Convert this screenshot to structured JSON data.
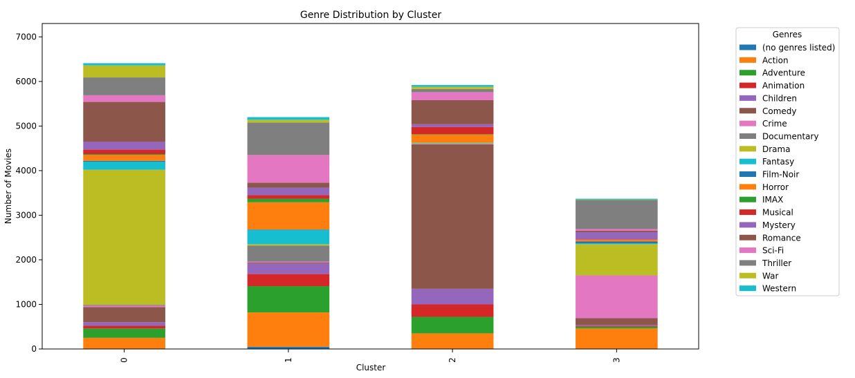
{
  "chart_data": {
    "type": "bar",
    "stacked": true,
    "title": "Genre Distribution by Cluster",
    "xlabel": "Cluster",
    "ylabel": "Number of Movies",
    "categories": [
      "0",
      "1",
      "2",
      "3"
    ],
    "ylim": [
      0,
      7300
    ],
    "yticks": [
      0,
      1000,
      2000,
      3000,
      4000,
      5000,
      6000,
      7000
    ],
    "legend_title": "Genres",
    "legend_position": "right, outside plot",
    "series": [
      {
        "name": "(no genres listed)",
        "color": "#1f77b4",
        "values": [
          0,
          50,
          0,
          0
        ]
      },
      {
        "name": "Action",
        "color": "#ff7f0e",
        "values": [
          250,
          770,
          350,
          460
        ]
      },
      {
        "name": "Adventure",
        "color": "#2ca02c",
        "values": [
          210,
          590,
          370,
          40
        ]
      },
      {
        "name": "Animation",
        "color": "#d62728",
        "values": [
          60,
          270,
          280,
          20
        ]
      },
      {
        "name": "Children",
        "color": "#9467bd",
        "values": [
          80,
          240,
          350,
          20
        ]
      },
      {
        "name": "Comedy",
        "color": "#8c564b",
        "values": [
          340,
          20,
          3240,
          150
        ]
      },
      {
        "name": "Crime",
        "color": "#e377c2",
        "values": [
          30,
          20,
          10,
          960
        ]
      },
      {
        "name": "Documentary",
        "color": "#7f7f7f",
        "values": [
          20,
          360,
          10,
          0
        ]
      },
      {
        "name": "Drama",
        "color": "#bcbd22",
        "values": [
          3030,
          30,
          10,
          700
        ]
      },
      {
        "name": "Fantasy",
        "color": "#17becf",
        "values": [
          180,
          320,
          10,
          20
        ]
      },
      {
        "name": "Film-Noir",
        "color": "#1f77b4",
        "values": [
          20,
          10,
          0,
          40
        ]
      },
      {
        "name": "Horror",
        "color": "#ff7f0e",
        "values": [
          130,
          610,
          180,
          40
        ]
      },
      {
        "name": "IMAX",
        "color": "#2ca02c",
        "values": [
          20,
          80,
          10,
          0
        ]
      },
      {
        "name": "Musical",
        "color": "#d62728",
        "values": [
          100,
          80,
          160,
          10
        ]
      },
      {
        "name": "Mystery",
        "color": "#9467bd",
        "values": [
          180,
          170,
          60,
          160
        ]
      },
      {
        "name": "Romance",
        "color": "#8c564b",
        "values": [
          890,
          110,
          540,
          30
        ]
      },
      {
        "name": "Sci-Fi",
        "color": "#e377c2",
        "values": [
          150,
          620,
          180,
          40
        ]
      },
      {
        "name": "Thriller",
        "color": "#7f7f7f",
        "values": [
          400,
          730,
          70,
          650
        ]
      },
      {
        "name": "War",
        "color": "#bcbd22",
        "values": [
          270,
          60,
          50,
          10
        ]
      },
      {
        "name": "Western",
        "color": "#17becf",
        "values": [
          50,
          60,
          40,
          20
        ]
      }
    ]
  }
}
